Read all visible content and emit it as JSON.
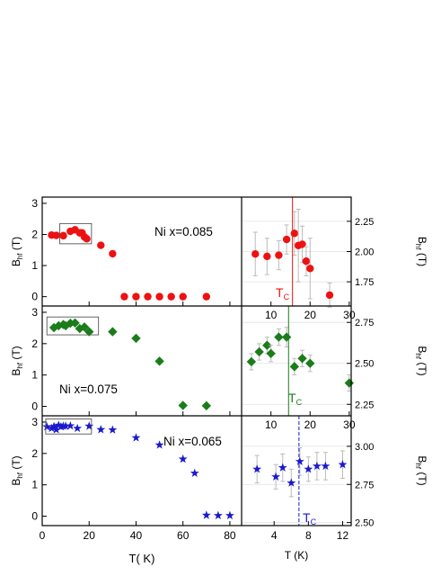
{
  "chart_data": [
    {
      "type": "scatter",
      "ylabel": "B_hf (T)",
      "xlim": [
        0,
        85
      ],
      "ylim": [
        -0.3,
        3.2
      ],
      "xticks": [
        0,
        20,
        40,
        60,
        80
      ],
      "yticks": [
        0,
        1,
        2,
        3
      ],
      "annotation": "Ni x=0.085",
      "series": [
        {
          "color": "#ee1111",
          "marker": "circle",
          "x": [
            4,
            6,
            9,
            12,
            14,
            16,
            17,
            18,
            19,
            25,
            30,
            35,
            40,
            45,
            50,
            55,
            60,
            70
          ],
          "y": [
            1.98,
            1.97,
            1.96,
            2.1,
            2.15,
            2.05,
            2.05,
            1.92,
            1.86,
            1.65,
            1.38,
            0,
            0,
            0,
            0,
            0,
            0,
            0
          ]
        }
      ]
    },
    {
      "type": "scatter",
      "ylabel": "B_hf (T)",
      "xlim": [
        0,
        85
      ],
      "ylim": [
        -0.3,
        3.2
      ],
      "xticks": [
        0,
        20,
        40,
        60,
        80
      ],
      "yticks": [
        0,
        1,
        2,
        3
      ],
      "annotation": "Ni x=0.075",
      "series": [
        {
          "color": "#1a7d1a",
          "marker": "diamond",
          "x": [
            5,
            7,
            9,
            10,
            12,
            14,
            16,
            18,
            20,
            30,
            40,
            50,
            60,
            70
          ],
          "y": [
            2.51,
            2.57,
            2.61,
            2.57,
            2.65,
            2.66,
            2.48,
            2.53,
            2.38,
            2.38,
            2.17,
            1.44,
            0.03,
            0.02
          ]
        }
      ]
    },
    {
      "type": "scatter",
      "ylabel": "B_hf (T)",
      "xlabel": "T( K)",
      "xlim": [
        0,
        85
      ],
      "ylim": [
        -0.3,
        3.2
      ],
      "xticks": [
        0,
        20,
        40,
        60,
        80
      ],
      "yticks": [
        0,
        1,
        2,
        3
      ],
      "annotation": "Ni x=0.065",
      "series": [
        {
          "color": "#1a1acc",
          "marker": "star",
          "x": [
            2,
            4,
            5,
            6,
            7,
            8,
            9,
            10,
            12,
            15,
            20,
            25,
            30,
            40,
            50,
            60,
            65,
            70,
            75,
            80
          ],
          "y": [
            2.85,
            2.8,
            2.86,
            2.76,
            2.9,
            2.85,
            2.87,
            2.87,
            2.88,
            2.8,
            2.87,
            2.76,
            2.75,
            2.5,
            2.27,
            1.82,
            1.37,
            0.03,
            0.02,
            0.02
          ]
        }
      ]
    },
    {
      "type": "scatter",
      "ylabel": "B_hf (T)",
      "xlim": [
        2.5,
        30.5
      ],
      "ylim": [
        1.55,
        2.45
      ],
      "xticks": [
        10,
        20,
        30
      ],
      "yticks": [
        1.75,
        2.0,
        2.25
      ],
      "ytick_labels": [
        "1.75",
        "2.00",
        "2.25"
      ],
      "tc_label": "T",
      "tc_sub": "C",
      "tc_value": 15.5,
      "series": [
        {
          "color": "#ee1111",
          "marker": "circle",
          "x": [
            6,
            9,
            12,
            14,
            16,
            17,
            18,
            19,
            20,
            25
          ],
          "y": [
            1.98,
            1.96,
            1.97,
            2.1,
            2.15,
            2.05,
            2.06,
            1.92,
            1.86,
            1.64
          ],
          "err": [
            0.18,
            0.15,
            0.12,
            0.12,
            0.18,
            0.3,
            0.15,
            0.12,
            0.25,
            0.1
          ]
        }
      ]
    },
    {
      "type": "scatter",
      "ylabel": "B_hf (T)",
      "xlim": [
        2.5,
        30.5
      ],
      "ylim": [
        2.18,
        2.85
      ],
      "xticks": [
        10,
        20,
        30
      ],
      "yticks": [
        2.25,
        2.5,
        2.75
      ],
      "ytick_labels": [
        "2.25",
        "2.50",
        "2.75"
      ],
      "tc_label": "T",
      "tc_sub": "C",
      "tc_value": 14.5,
      "series": [
        {
          "color": "#1a7d1a",
          "marker": "diamond",
          "x": [
            5,
            7,
            9,
            10,
            12,
            14,
            16,
            18,
            20,
            30
          ],
          "y": [
            2.51,
            2.57,
            2.61,
            2.56,
            2.66,
            2.66,
            2.48,
            2.53,
            2.5,
            2.38
          ],
          "err": [
            0.05,
            0.05,
            0.05,
            0.05,
            0.05,
            0.06,
            0.05,
            0.05,
            0.05,
            0.05
          ]
        }
      ]
    },
    {
      "type": "scatter",
      "ylabel": "B_hf (T)",
      "xlabel": "T (K)",
      "xlim": [
        0.2,
        13
      ],
      "ylim": [
        2.48,
        3.2
      ],
      "xticks": [
        4,
        8,
        12
      ],
      "yticks": [
        2.5,
        2.75,
        3.0
      ],
      "ytick_labels": [
        "2.50",
        "2.75",
        "3.00"
      ],
      "tc_label": "T",
      "tc_sub": "C",
      "tc_value": 6.9,
      "series": [
        {
          "color": "#1a1acc",
          "marker": "star",
          "x": [
            2,
            4.2,
            5,
            6,
            7,
            8,
            9,
            10,
            12
          ],
          "y": [
            2.85,
            2.8,
            2.86,
            2.76,
            2.9,
            2.85,
            2.87,
            2.87,
            2.88
          ],
          "err": [
            0.09,
            0.08,
            0.09,
            0.09,
            0.09,
            0.08,
            0.09,
            0.09,
            0.09
          ]
        }
      ]
    }
  ]
}
